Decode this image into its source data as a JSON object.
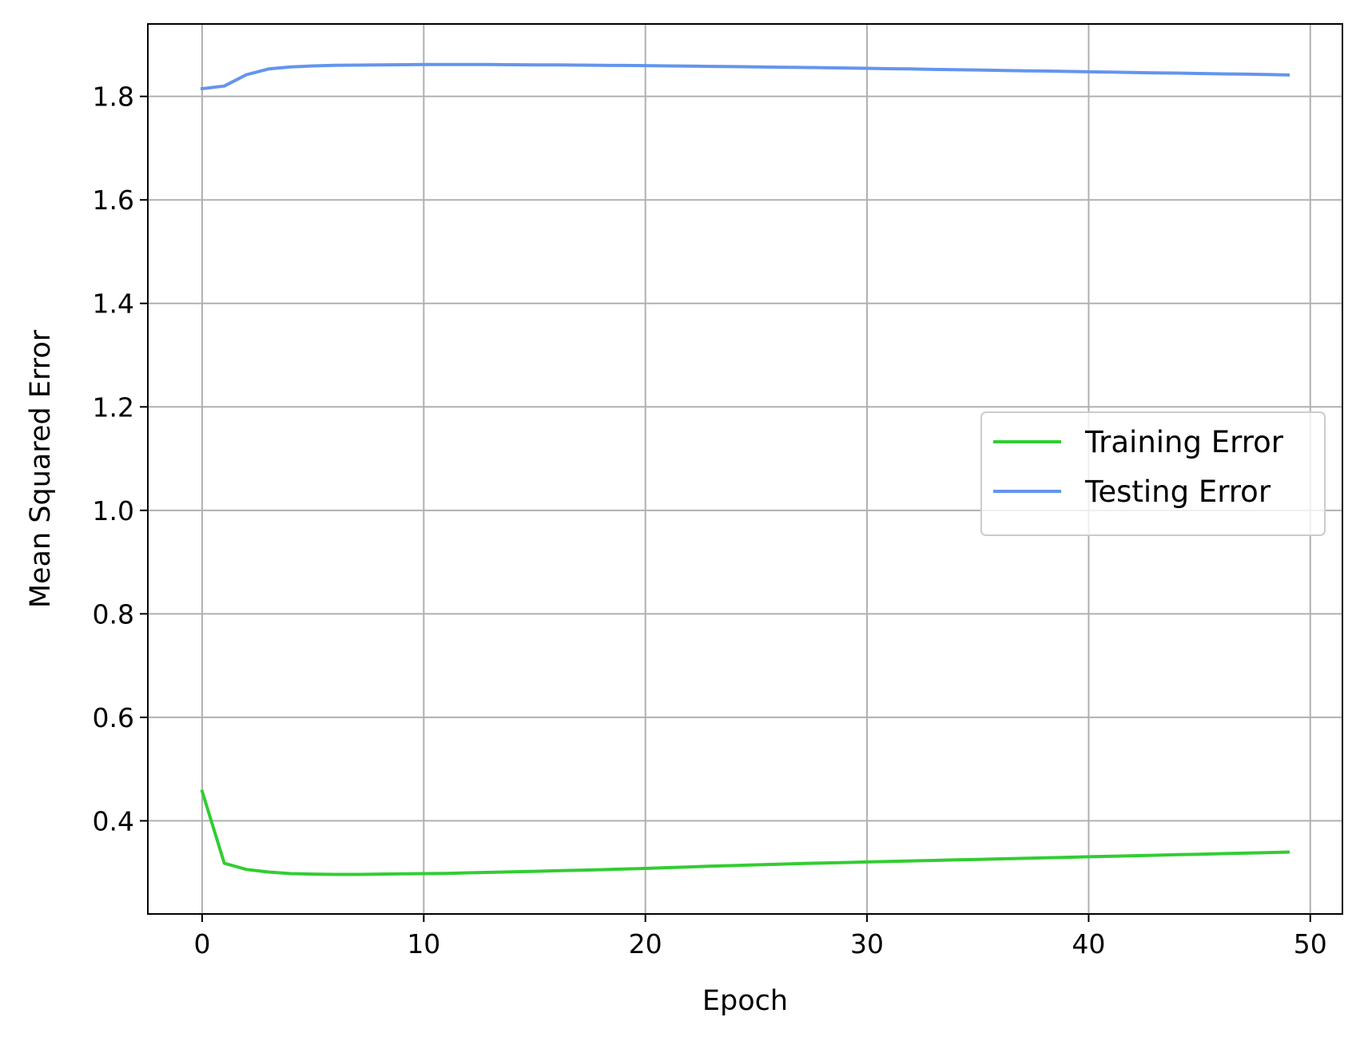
{
  "chart_data": {
    "type": "line",
    "title": "",
    "xlabel": "Epoch",
    "ylabel": "Mean Squared Error",
    "xlim": [
      -2.45,
      51.45
    ],
    "ylim": [
      0.22,
      1.94
    ],
    "xticks": [
      0,
      10,
      20,
      30,
      40,
      50
    ],
    "xtick_labels": [
      "0",
      "10",
      "20",
      "30",
      "40",
      "50"
    ],
    "yticks": [
      0.4,
      0.6,
      0.8,
      1.0,
      1.2,
      1.4,
      1.6,
      1.8
    ],
    "ytick_labels": [
      "0.4",
      "0.6",
      "0.8",
      "1.0",
      "1.2",
      "1.4",
      "1.6",
      "1.8"
    ],
    "grid": true,
    "legend": {
      "position": "center-right"
    },
    "x": [
      0,
      1,
      2,
      3,
      4,
      5,
      6,
      7,
      8,
      9,
      10,
      11,
      12,
      13,
      14,
      15,
      16,
      17,
      18,
      19,
      20,
      21,
      22,
      23,
      24,
      25,
      26,
      27,
      28,
      29,
      30,
      31,
      32,
      33,
      34,
      35,
      36,
      37,
      38,
      39,
      40,
      41,
      42,
      43,
      44,
      45,
      46,
      47,
      48,
      49
    ],
    "series": [
      {
        "name": "Training Error",
        "color": "#32cd32",
        "values": [
          0.457,
          0.318,
          0.306,
          0.301,
          0.298,
          0.297,
          0.2965,
          0.2965,
          0.297,
          0.2975,
          0.298,
          0.2985,
          0.2995,
          0.3005,
          0.3015,
          0.3025,
          0.3035,
          0.3045,
          0.3055,
          0.307,
          0.308,
          0.3095,
          0.311,
          0.3125,
          0.3135,
          0.315,
          0.316,
          0.3175,
          0.3185,
          0.3195,
          0.3205,
          0.3215,
          0.3225,
          0.3235,
          0.3245,
          0.3255,
          0.3265,
          0.3275,
          0.3285,
          0.3295,
          0.3305,
          0.3315,
          0.3325,
          0.3335,
          0.3345,
          0.3355,
          0.3365,
          0.3375,
          0.3385,
          0.3395
        ]
      },
      {
        "name": "Testing Error",
        "color": "#6495ed",
        "values": [
          1.815,
          1.82,
          1.842,
          1.853,
          1.857,
          1.859,
          1.86,
          1.8605,
          1.861,
          1.8612,
          1.8615,
          1.8615,
          1.8615,
          1.8615,
          1.8613,
          1.861,
          1.8608,
          1.8605,
          1.86,
          1.8598,
          1.8595,
          1.859,
          1.8585,
          1.858,
          1.8575,
          1.857,
          1.8565,
          1.856,
          1.8555,
          1.855,
          1.8543,
          1.8535,
          1.853,
          1.8522,
          1.8515,
          1.851,
          1.8503,
          1.8495,
          1.849,
          1.8483,
          1.8475,
          1.847,
          1.8463,
          1.8455,
          1.845,
          1.8443,
          1.8435,
          1.843,
          1.8423,
          1.8415
        ]
      }
    ]
  }
}
